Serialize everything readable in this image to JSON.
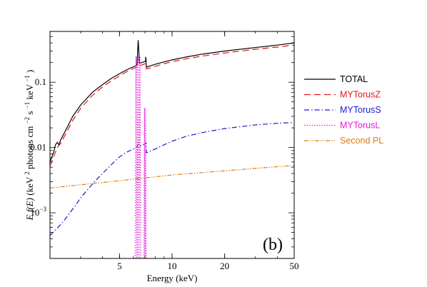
{
  "chart_data": {
    "type": "line",
    "panel_label": "(b)",
    "xlabel": "Energy (keV)",
    "ylabel": {
      "prefix": "E",
      "func": "f(E)",
      "rest": " (keV",
      "sup1": "2",
      "mid": " photons cm",
      "sup2": "−2",
      "mid2": " s",
      "sup3": "−1",
      "mid3": " keV",
      "sup4": "−1",
      "end": ")"
    },
    "x_scale": "log",
    "y_scale": "log",
    "xlim": [
      2.0,
      50.0
    ],
    "ylim": [
      0.0002,
      0.6
    ],
    "x_ticks": [
      {
        "value": 5,
        "label": "5"
      },
      {
        "value": 10,
        "label": "10"
      },
      {
        "value": 20,
        "label": "20"
      },
      {
        "value": 50,
        "label": "50"
      }
    ],
    "y_ticks": [
      {
        "value": 0.001,
        "label": "10",
        "sup": "−3"
      },
      {
        "value": 0.01,
        "label": "0.01",
        "sup": ""
      },
      {
        "value": 0.1,
        "label": "0.1",
        "sup": ""
      }
    ],
    "grid": false,
    "legend_position": "outside-right",
    "series": [
      {
        "name": "TOTAL",
        "color": "#000000",
        "dash": "solid",
        "points": [
          [
            2.0,
            0.006
          ],
          [
            2.1,
            0.0085
          ],
          [
            2.15,
            0.011
          ],
          [
            2.2,
            0.012
          ],
          [
            2.25,
            0.011
          ],
          [
            2.3,
            0.013
          ],
          [
            2.5,
            0.02
          ],
          [
            2.7,
            0.03
          ],
          [
            3.0,
            0.045
          ],
          [
            3.5,
            0.07
          ],
          [
            4.0,
            0.092
          ],
          [
            4.5,
            0.115
          ],
          [
            5.0,
            0.135
          ],
          [
            5.5,
            0.155
          ],
          [
            6.0,
            0.172
          ],
          [
            6.3,
            0.183
          ],
          [
            6.35,
            0.3
          ],
          [
            6.4,
            0.44
          ],
          [
            6.45,
            0.3
          ],
          [
            6.5,
            0.195
          ],
          [
            6.9,
            0.205
          ],
          [
            7.05,
            0.21
          ],
          [
            7.06,
            0.245
          ],
          [
            7.1,
            0.215
          ],
          [
            7.11,
            0.17
          ],
          [
            7.5,
            0.178
          ],
          [
            8,
            0.188
          ],
          [
            9,
            0.205
          ],
          [
            10,
            0.22
          ],
          [
            12,
            0.243
          ],
          [
            15,
            0.27
          ],
          [
            20,
            0.3
          ],
          [
            30,
            0.34
          ],
          [
            40,
            0.37
          ],
          [
            50,
            0.4
          ]
        ]
      },
      {
        "name": "MYTorusZ",
        "color": "#e8141e",
        "dash": "long-dash",
        "points": [
          [
            2.0,
            0.0052
          ],
          [
            2.1,
            0.0072
          ],
          [
            2.2,
            0.01
          ],
          [
            2.3,
            0.0115
          ],
          [
            2.5,
            0.0175
          ],
          [
            2.7,
            0.026
          ],
          [
            3.0,
            0.04
          ],
          [
            3.5,
            0.063
          ],
          [
            4.0,
            0.085
          ],
          [
            4.5,
            0.105
          ],
          [
            5.0,
            0.125
          ],
          [
            5.5,
            0.145
          ],
          [
            6.0,
            0.162
          ],
          [
            6.5,
            0.178
          ],
          [
            7.0,
            0.192
          ],
          [
            7.11,
            0.195
          ],
          [
            7.12,
            0.16
          ],
          [
            7.5,
            0.165
          ],
          [
            8,
            0.175
          ],
          [
            9,
            0.192
          ],
          [
            10,
            0.206
          ],
          [
            12,
            0.228
          ],
          [
            15,
            0.252
          ],
          [
            20,
            0.28
          ],
          [
            30,
            0.32
          ],
          [
            40,
            0.345
          ],
          [
            50,
            0.37
          ]
        ]
      },
      {
        "name": "MYTorusS",
        "color": "#1a1ad6",
        "dash": "dash-dot",
        "points": [
          [
            2.0,
            0.00045
          ],
          [
            2.2,
            0.00058
          ],
          [
            2.4,
            0.00075
          ],
          [
            2.6,
            0.001
          ],
          [
            2.8,
            0.0013
          ],
          [
            3.0,
            0.0017
          ],
          [
            3.3,
            0.0023
          ],
          [
            3.6,
            0.003
          ],
          [
            4.0,
            0.004
          ],
          [
            4.5,
            0.0055
          ],
          [
            5.0,
            0.0072
          ],
          [
            5.5,
            0.0085
          ],
          [
            6.0,
            0.0095
          ],
          [
            6.3,
            0.0102
          ],
          [
            6.4,
            0.0112
          ],
          [
            6.5,
            0.0104
          ],
          [
            7.0,
            0.0113
          ],
          [
            7.1,
            0.0118
          ],
          [
            7.12,
            0.0083
          ],
          [
            7.5,
            0.0088
          ],
          [
            8,
            0.0095
          ],
          [
            9,
            0.011
          ],
          [
            10,
            0.0125
          ],
          [
            12,
            0.0148
          ],
          [
            15,
            0.017
          ],
          [
            20,
            0.0195
          ],
          [
            30,
            0.0222
          ],
          [
            40,
            0.0235
          ],
          [
            50,
            0.0242
          ]
        ]
      },
      {
        "name": "MYTorusL",
        "color": "#e818d8",
        "dash": "dotted",
        "points": [
          [
            6.15,
            0.0002
          ],
          [
            6.22,
            0.25
          ],
          [
            6.3,
            0.0002
          ],
          [
            6.38,
            0.25
          ],
          [
            6.46,
            0.0002
          ],
          [
            6.54,
            0.25
          ],
          [
            6.62,
            0.0002
          ],
          [
            6.9,
            0.0002
          ],
          [
            6.95,
            0.04
          ],
          [
            7.0,
            0.0002
          ],
          [
            7.05,
            0.04
          ],
          [
            7.1,
            0.0002
          ]
        ]
      },
      {
        "name": "Second PL",
        "color": "#e07a10",
        "dash": "dash-dot-dot",
        "points": [
          [
            2.0,
            0.0024
          ],
          [
            5.0,
            0.0031
          ],
          [
            10,
            0.0038
          ],
          [
            20,
            0.0044
          ],
          [
            30,
            0.0048
          ],
          [
            50,
            0.0053
          ]
        ]
      }
    ]
  }
}
